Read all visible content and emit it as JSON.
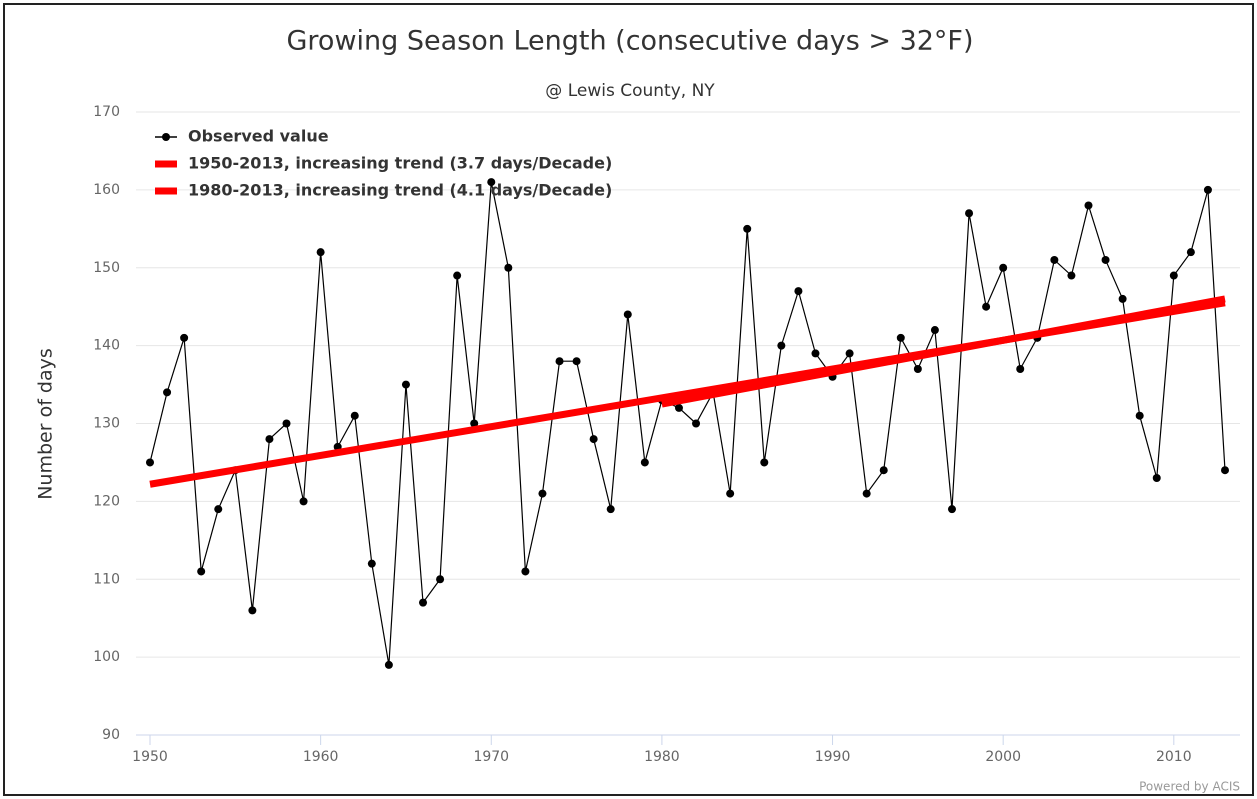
{
  "chart_data": {
    "type": "line",
    "title": "Growing Season Length (consecutive days > 32°F)",
    "subtitle": "@ Lewis County, NY",
    "y_label": "Number of days",
    "credits": "Powered by ACIS",
    "x": [
      1950,
      1951,
      1952,
      1953,
      1954,
      1955,
      1956,
      1957,
      1958,
      1959,
      1960,
      1961,
      1962,
      1963,
      1964,
      1965,
      1966,
      1967,
      1968,
      1969,
      1970,
      1971,
      1972,
      1973,
      1974,
      1975,
      1976,
      1977,
      1978,
      1979,
      1980,
      1981,
      1982,
      1983,
      1984,
      1985,
      1986,
      1987,
      1988,
      1989,
      1990,
      1991,
      1992,
      1993,
      1994,
      1995,
      1996,
      1997,
      1998,
      1999,
      2000,
      2001,
      2002,
      2003,
      2004,
      2005,
      2006,
      2007,
      2008,
      2009,
      2010,
      2011,
      2012,
      2013
    ],
    "series": [
      {
        "name": "Observed value",
        "color": "#000000",
        "values": [
          125,
          134,
          141,
          111,
          119,
          124,
          106,
          128,
          130,
          120,
          152,
          127,
          131,
          112,
          99,
          135,
          107,
          110,
          149,
          130,
          161,
          150,
          111,
          121,
          138,
          138,
          128,
          119,
          144,
          125,
          133,
          132,
          130,
          134,
          121,
          155,
          125,
          140,
          147,
          139,
          136,
          139,
          121,
          124,
          141,
          137,
          142,
          119,
          157,
          145,
          150,
          137,
          141,
          151,
          149,
          158,
          151,
          146,
          131,
          123,
          149,
          152,
          160,
          124
        ]
      },
      {
        "name": "1950-2013, increasing trend (3.7 days/Decade)",
        "color": "#ff0000",
        "x": [
          1950,
          2013
        ],
        "values": [
          122.2,
          145.5
        ]
      },
      {
        "name": "1980-2013, increasing trend (4.1 days/Decade)",
        "color": "#ff0000",
        "x": [
          1980,
          2013
        ],
        "values": [
          132.5,
          146
        ]
      }
    ],
    "xlim": [
      1950,
      2013
    ],
    "ylim": [
      90,
      170
    ],
    "xticks": [
      1950,
      1960,
      1970,
      1980,
      1990,
      2000,
      2010
    ],
    "yticks": [
      90,
      100,
      110,
      120,
      130,
      140,
      150,
      160,
      170
    ],
    "grid": true,
    "legend": "top-left"
  }
}
